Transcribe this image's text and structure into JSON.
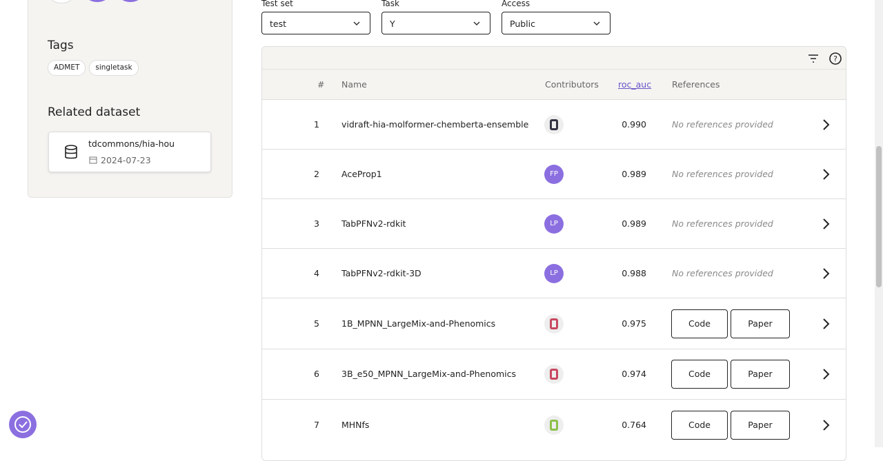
{
  "sidebar": {
    "tags_title": "Tags",
    "tags": [
      "ADMET",
      "singletask"
    ],
    "related_title": "Related dataset",
    "dataset": {
      "name": "tdcommons/hia-hou",
      "date": "2024-07-23"
    }
  },
  "filters": [
    {
      "label": "Test set",
      "value": "test"
    },
    {
      "label": "Task",
      "value": "Y"
    },
    {
      "label": "Access",
      "value": "Public"
    }
  ],
  "table": {
    "columns": [
      "#",
      "Name",
      "Contributors",
      "roc_auc",
      "References"
    ],
    "rows": [
      {
        "rank": "1",
        "name": "vidraft-hia-molformer-chemberta-ensemble",
        "score": "0.990",
        "references": "No references provided"
      },
      {
        "rank": "2",
        "name": "AceProp1",
        "initials": "FP",
        "score": "0.989",
        "references": "No references provided"
      },
      {
        "rank": "3",
        "name": "TabPFNv2-rdkit",
        "initials": "LP",
        "score": "0.989",
        "references": "No references provided"
      },
      {
        "rank": "4",
        "name": "TabPFNv2-rdkit-3D",
        "initials": "LP",
        "score": "0.988",
        "references": "No references provided"
      },
      {
        "rank": "5",
        "name": "1B_MPNN_LargeMix-and-Phenomics",
        "score": "0.975",
        "references": [
          "Code",
          "Paper"
        ]
      },
      {
        "rank": "6",
        "name": "3B_e50_MPNN_LargeMix-and-Phenomics",
        "score": "0.974",
        "references": [
          "Code",
          "Paper"
        ]
      },
      {
        "rank": "7",
        "name": "MHNfs",
        "score": "0.764",
        "references": [
          "Code",
          "Paper"
        ]
      }
    ]
  }
}
